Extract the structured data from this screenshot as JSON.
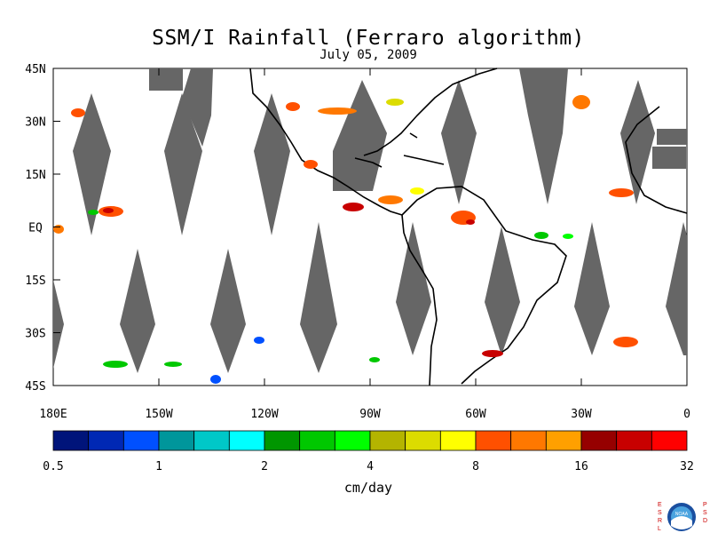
{
  "title": "SSM/I Rainfall (Ferraro algorithm)",
  "date": "July 05, 2009",
  "lat_labels": [
    "45N",
    "30N",
    "15N",
    "EQ",
    "15S",
    "30S",
    "45S"
  ],
  "lon_labels": [
    "180E",
    "150W",
    "120W",
    "90W",
    "60W",
    "30W",
    "0"
  ],
  "colorbar": {
    "colors": [
      "#00147a",
      "#0028b4",
      "#0050ff",
      "#00969b",
      "#00c8c8",
      "#00ffff",
      "#009600",
      "#00c800",
      "#00ff00",
      "#b4b400",
      "#dcdc00",
      "#ffff00",
      "#ff5000",
      "#ff7800",
      "#ffa000",
      "#960000",
      "#c80000",
      "#ff0000"
    ],
    "tick_labels": [
      "0.5",
      "1",
      "2",
      "4",
      "8",
      "16",
      "32"
    ],
    "unit": "cm/day"
  },
  "logo": {
    "left": "ESRL",
    "right": "PSD",
    "center": "NOAA"
  }
}
